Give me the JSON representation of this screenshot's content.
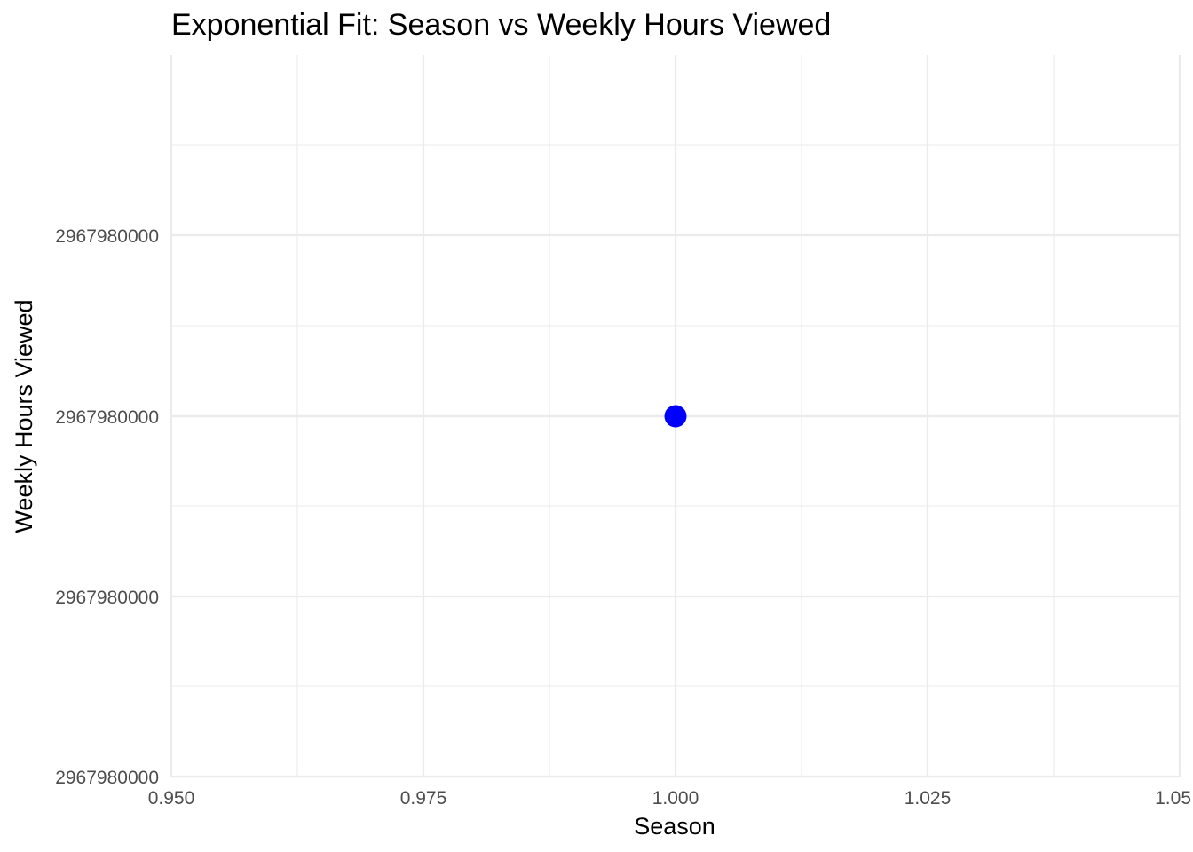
{
  "chart_data": {
    "type": "scatter",
    "title": "Exponential Fit: Season vs Weekly Hours Viewed",
    "xlabel": "Season",
    "ylabel": "Weekly Hours Viewed",
    "x_ticks": [
      "0.950",
      "0.975",
      "1.000",
      "1.025",
      "1.05"
    ],
    "y_ticks": [
      "2967980000",
      "2967980000",
      "2967980000",
      "2967980000"
    ],
    "xlim": [
      0.95,
      1.05
    ],
    "points": [
      {
        "x": 1.0,
        "y": 2967980000
      }
    ],
    "point_color": "#0000ff",
    "grid": true,
    "grid_color": "#ebebeb",
    "legend": "none"
  }
}
